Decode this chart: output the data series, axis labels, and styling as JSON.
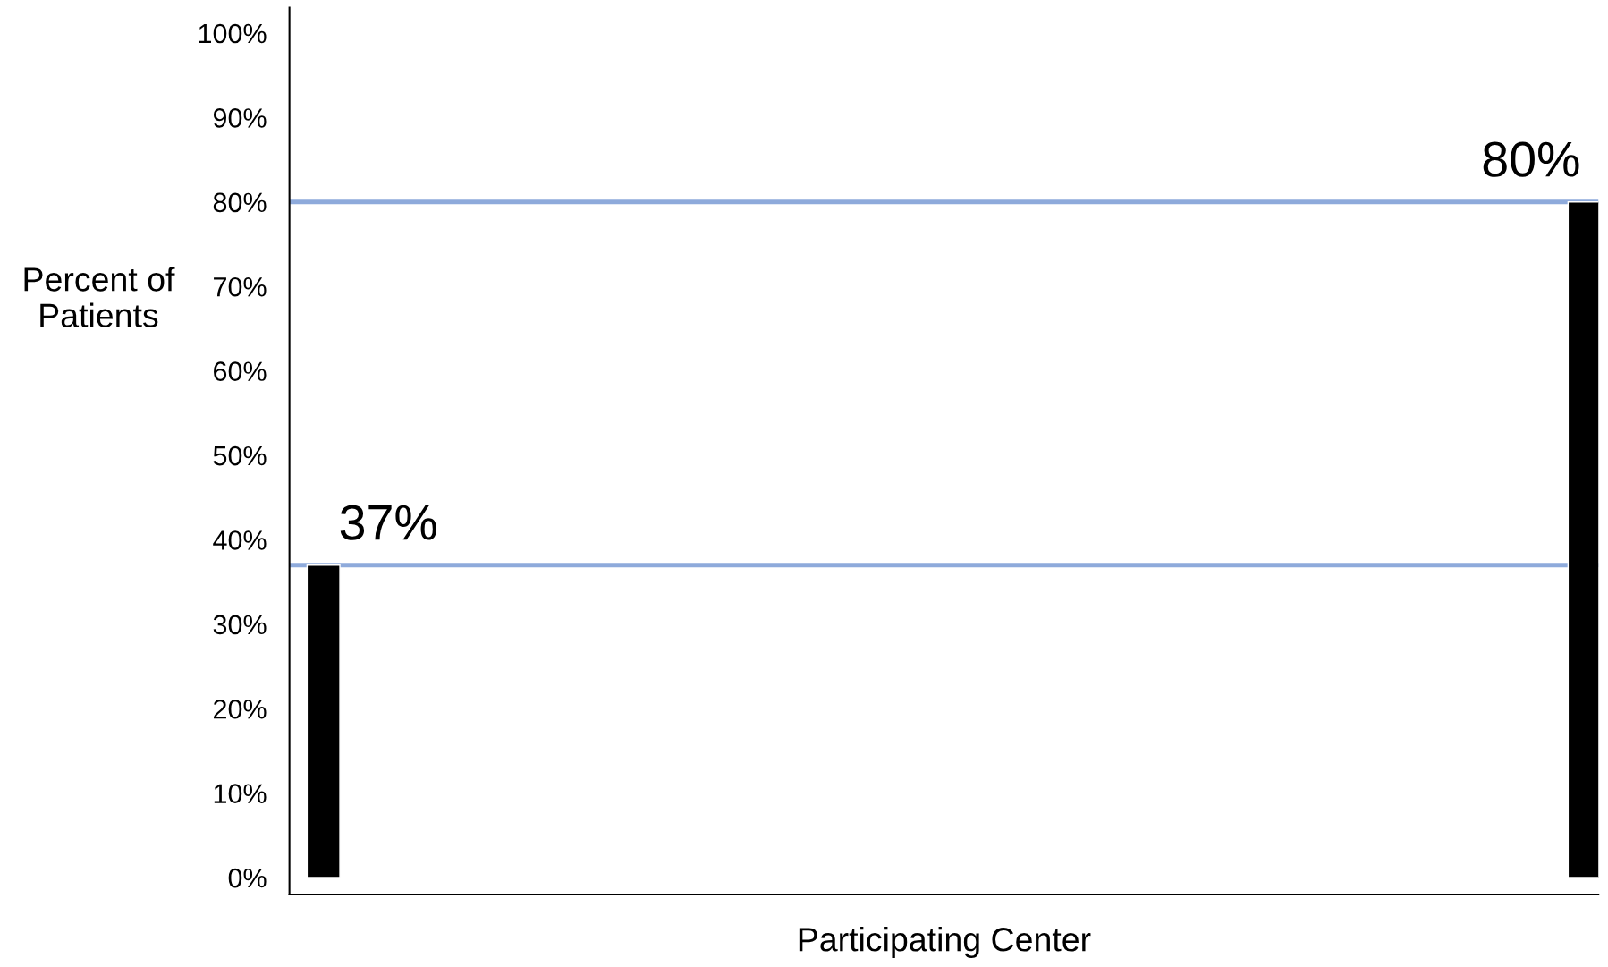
{
  "chart_data": {
    "type": "bar",
    "xlabel": "Participating Center",
    "ylabel": "Percent of\nPatients",
    "categories": [
      null,
      null
    ],
    "values": [
      37,
      80
    ],
    "color": "#000000",
    "ylim": [
      -2,
      103
    ],
    "yticks": [
      {
        "value": 0,
        "label": "0%"
      },
      {
        "value": 10,
        "label": "10%"
      },
      {
        "value": 20,
        "label": "20%"
      },
      {
        "value": 30,
        "label": "30%"
      },
      {
        "value": 40,
        "label": "40%"
      },
      {
        "value": 50,
        "label": "50%"
      },
      {
        "value": 60,
        "label": "60%"
      },
      {
        "value": 70,
        "label": "70%"
      },
      {
        "value": 80,
        "label": "80%"
      },
      {
        "value": 90,
        "label": "90%"
      },
      {
        "value": 100,
        "label": "100%"
      }
    ],
    "ref_lines": [
      {
        "axis": "y",
        "value": 37,
        "label": "37%",
        "color": "#8eaadb"
      },
      {
        "axis": "y",
        "value": 80,
        "label": "80%",
        "color": "#8eaadb"
      }
    ],
    "grid": false
  }
}
